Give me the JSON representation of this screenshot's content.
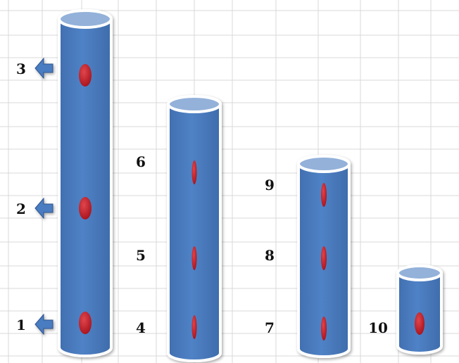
{
  "colors": {
    "cylinder_body": "#4a7cc0",
    "cylinder_top": "#93b1d9",
    "cylinder_outline": "#ffffff",
    "marker": "#c8202a",
    "arrow": "#4a7cc0",
    "grid": "#d9d9d9"
  },
  "icons": {
    "arrow": "left-arrow-icon",
    "marker": "oval-marker"
  },
  "cylinders": [
    {
      "id": "a",
      "markers": [
        {
          "label": "1",
          "arrow": true
        },
        {
          "label": "2",
          "arrow": true
        },
        {
          "label": "3",
          "arrow": true
        }
      ]
    },
    {
      "id": "b",
      "markers": [
        {
          "label": "4",
          "arrow": false
        },
        {
          "label": "5",
          "arrow": false
        },
        {
          "label": "6",
          "arrow": false
        }
      ]
    },
    {
      "id": "c",
      "markers": [
        {
          "label": "7",
          "arrow": false
        },
        {
          "label": "8",
          "arrow": false
        },
        {
          "label": "9",
          "arrow": false
        }
      ]
    },
    {
      "id": "d",
      "markers": [
        {
          "label": "10",
          "arrow": false
        }
      ]
    }
  ]
}
